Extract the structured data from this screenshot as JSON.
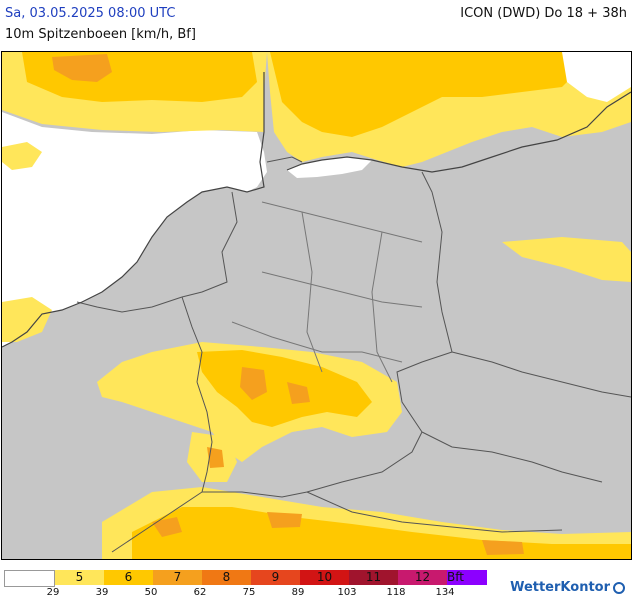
{
  "header": {
    "timestamp": "Sa, 03.05.2025 08:00 UTC",
    "model": "ICON (DWD) Do 18 + 38h",
    "parameter": "10m Spitzenboeen [km/h, Bf]"
  },
  "legend": {
    "steps": [
      {
        "label": "",
        "color": "#ffffff"
      },
      {
        "label": "5",
        "color": "#ffe65a"
      },
      {
        "label": "6",
        "color": "#ffc800"
      },
      {
        "label": "7",
        "color": "#f5a01e"
      },
      {
        "label": "8",
        "color": "#f07814"
      },
      {
        "label": "9",
        "color": "#e6461e"
      },
      {
        "label": "10",
        "color": "#d21414"
      },
      {
        "label": "11",
        "color": "#a0142d"
      },
      {
        "label": "12",
        "color": "#c8196e"
      },
      {
        "label": "Bft",
        "color": "#8c00ff"
      }
    ],
    "ticks": [
      "29",
      "39",
      "50",
      "62",
      "75",
      "89",
      "103",
      "118",
      "134"
    ]
  },
  "logo": {
    "text": "WetterKontor",
    "icon": "wetterkontor-logo-icon"
  },
  "map": {
    "land_color": "#c6c6c6",
    "sea_color": "#ffffff",
    "border_color": "#555555"
  }
}
